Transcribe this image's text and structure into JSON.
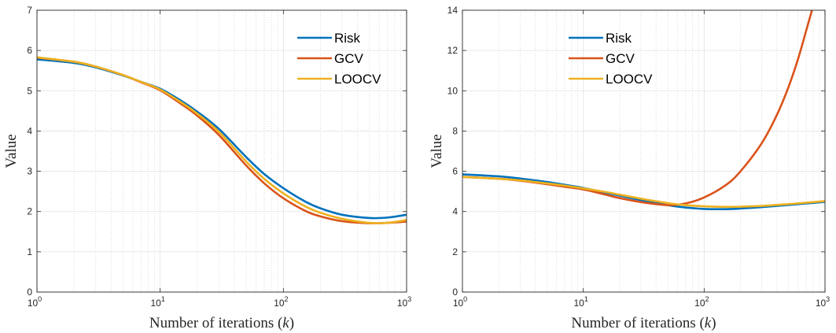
{
  "chart_data": [
    {
      "type": "line",
      "xscale": "log",
      "xlim": [
        1,
        1000
      ],
      "ylim": [
        0,
        7
      ],
      "xlabel": "Number of iterations (k)",
      "ylabel": "Value",
      "xticks": [
        {
          "base": "10",
          "exp": "0"
        },
        {
          "base": "10",
          "exp": "1"
        },
        {
          "base": "10",
          "exp": "2"
        },
        {
          "base": "10",
          "exp": "3"
        }
      ],
      "yticks": [
        "0",
        "1",
        "2",
        "3",
        "4",
        "5",
        "6",
        "7"
      ],
      "grid": true,
      "legend_position": "top-right",
      "series": [
        {
          "name": "Risk",
          "color": "#0072BD",
          "x": [
            1,
            2,
            3,
            5,
            7,
            10,
            15,
            20,
            30,
            50,
            70,
            100,
            150,
            200,
            300,
            500,
            700,
            1000
          ],
          "y": [
            5.78,
            5.69,
            5.58,
            5.38,
            5.22,
            5.05,
            4.74,
            4.48,
            4.05,
            3.35,
            2.93,
            2.58,
            2.25,
            2.08,
            1.92,
            1.84,
            1.85,
            1.92
          ]
        },
        {
          "name": "GCV",
          "color": "#D95319",
          "x": [
            1,
            2,
            3,
            5,
            7,
            10,
            15,
            20,
            30,
            50,
            70,
            100,
            150,
            200,
            300,
            500,
            700,
            1000
          ],
          "y": [
            5.82,
            5.72,
            5.6,
            5.39,
            5.21,
            5.01,
            4.66,
            4.38,
            3.9,
            3.14,
            2.7,
            2.33,
            2.02,
            1.88,
            1.76,
            1.71,
            1.72,
            1.75
          ]
        },
        {
          "name": "LOOCV",
          "color": "#EDB120",
          "x": [
            1,
            2,
            3,
            5,
            7,
            10,
            15,
            20,
            30,
            50,
            70,
            100,
            150,
            200,
            300,
            500,
            700,
            1000
          ],
          "y": [
            5.83,
            5.72,
            5.6,
            5.39,
            5.22,
            5.03,
            4.7,
            4.43,
            3.98,
            3.24,
            2.81,
            2.45,
            2.13,
            1.97,
            1.82,
            1.72,
            1.72,
            1.79
          ]
        }
      ]
    },
    {
      "type": "line",
      "xscale": "log",
      "xlim": [
        1,
        1000
      ],
      "ylim": [
        0,
        14
      ],
      "xlabel": "Number of iterations (k)",
      "ylabel": "Value",
      "xticks": [
        {
          "base": "10",
          "exp": "0"
        },
        {
          "base": "10",
          "exp": "1"
        },
        {
          "base": "10",
          "exp": "2"
        },
        {
          "base": "10",
          "exp": "3"
        }
      ],
      "yticks": [
        "0",
        "2",
        "4",
        "6",
        "8",
        "10",
        "12",
        "14"
      ],
      "grid": true,
      "legend_position": "top-center",
      "series": [
        {
          "name": "Risk",
          "color": "#0072BD",
          "x": [
            1,
            2,
            3,
            5,
            7,
            10,
            15,
            20,
            30,
            50,
            70,
            100,
            150,
            200,
            300,
            500,
            700,
            1000
          ],
          "y": [
            5.85,
            5.75,
            5.64,
            5.47,
            5.33,
            5.17,
            4.95,
            4.79,
            4.57,
            4.32,
            4.2,
            4.13,
            4.12,
            4.15,
            4.22,
            4.33,
            4.4,
            4.48
          ]
        },
        {
          "name": "GCV",
          "color": "#D95319",
          "x": [
            1,
            2,
            3,
            5,
            7,
            10,
            15,
            20,
            30,
            50,
            70,
            100,
            150,
            200,
            300,
            400,
            500,
            600,
            700,
            780
          ],
          "y": [
            5.72,
            5.63,
            5.53,
            5.36,
            5.23,
            5.1,
            4.85,
            4.67,
            4.47,
            4.32,
            4.4,
            4.7,
            5.3,
            6.0,
            7.4,
            8.8,
            10.2,
            11.6,
            13.0,
            14.0
          ]
        },
        {
          "name": "LOOCV",
          "color": "#EDB120",
          "x": [
            1,
            2,
            3,
            5,
            7,
            10,
            15,
            20,
            30,
            50,
            70,
            100,
            150,
            200,
            300,
            500,
            700,
            1000
          ],
          "y": [
            5.72,
            5.63,
            5.55,
            5.4,
            5.29,
            5.15,
            4.98,
            4.84,
            4.64,
            4.42,
            4.32,
            4.26,
            4.23,
            4.24,
            4.28,
            4.37,
            4.44,
            4.52
          ]
        }
      ]
    }
  ]
}
